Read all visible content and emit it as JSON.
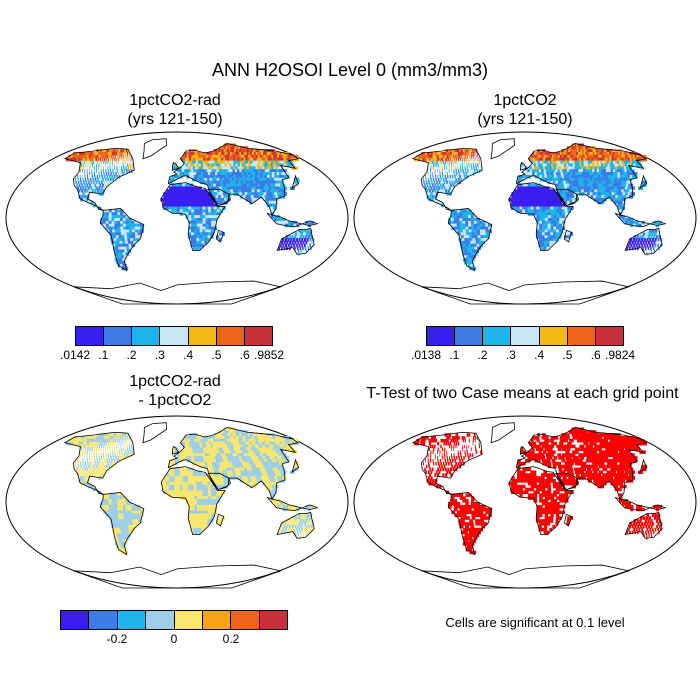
{
  "title": "ANN H2OSOI Level 0 (mm3/mm3)",
  "panels": [
    {
      "id": "p1",
      "title_line1": "1pctCO2-rad",
      "title_line2": "(yrs 121-150)",
      "kind": "moisture"
    },
    {
      "id": "p2",
      "title_line1": "1pctCO2",
      "title_line2": "(yrs 121-150)",
      "kind": "moisture"
    },
    {
      "id": "p3",
      "title_line1": "1pctCO2-rad",
      "title_line2": "- 1pctCO2",
      "kind": "difference"
    },
    {
      "id": "p4",
      "title_line1": "T-Test of two Case means at each grid point",
      "title_line2": "",
      "kind": "ttest"
    }
  ],
  "colorbars": {
    "moisture_left": {
      "colors": [
        "#3a1ef0",
        "#3d7ce6",
        "#1eb4ec",
        "#c7e6f1",
        "#f5b915",
        "#f0641a",
        "#c8323c"
      ],
      "labels": [
        ".0142",
        ".1",
        ".2",
        ".3",
        ".4",
        ".5",
        ".6",
        ".9852"
      ]
    },
    "moisture_right": {
      "colors": [
        "#3a1ef0",
        "#3d7ce6",
        "#1eb4ec",
        "#c7e6f1",
        "#f5b915",
        "#f0641a",
        "#c8323c"
      ],
      "labels": [
        ".0138",
        ".1",
        ".2",
        ".3",
        ".4",
        ".5",
        ".6",
        ".9824"
      ]
    },
    "difference": {
      "colors": [
        "#3a1ef0",
        "#3d7ce6",
        "#1eb4ec",
        "#9ecfe8",
        "#f8e66e",
        "#f5a318",
        "#f0641a",
        "#c8323c"
      ],
      "labels": [
        "-0.2",
        "0",
        "0.2"
      ]
    }
  },
  "significance_note": "Cells are significant at 0.1 level",
  "colors": {
    "significant": "#ff0000",
    "land_diff_pos": "#f8e66e",
    "land_diff_neg": "#9ecfe8"
  }
}
